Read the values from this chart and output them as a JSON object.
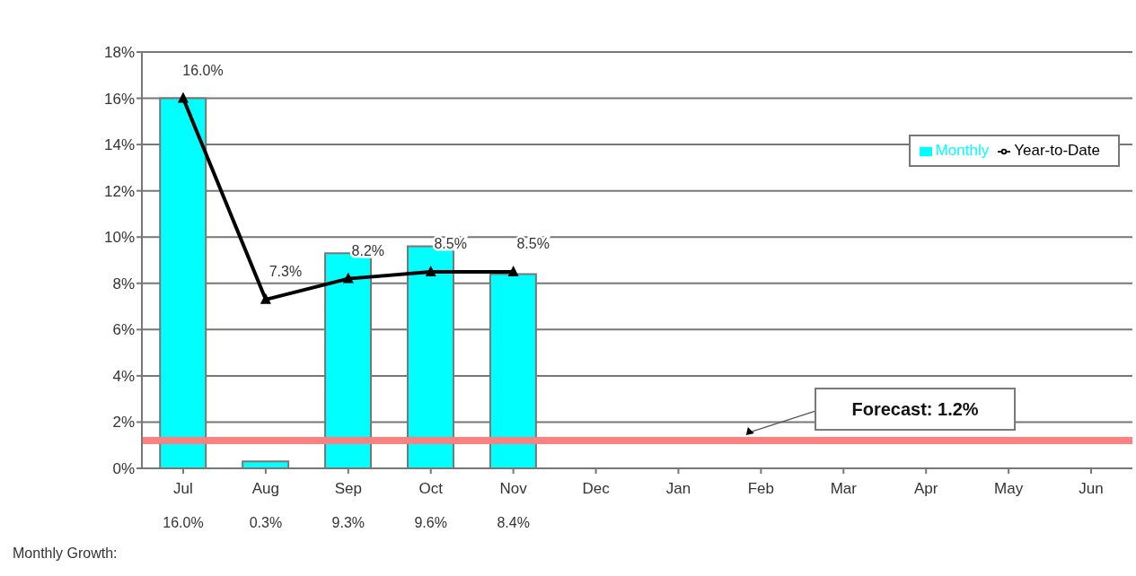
{
  "chart_data": {
    "type": "bar",
    "categories": [
      "Jul",
      "Aug",
      "Sep",
      "Oct",
      "Nov",
      "Dec",
      "Jan",
      "Feb",
      "Mar",
      "Apr",
      "May",
      "Jun"
    ],
    "series": [
      {
        "name": "Monthly",
        "color": "#00ffff",
        "values": [
          16.0,
          0.3,
          9.3,
          9.6,
          8.4,
          null,
          null,
          null,
          null,
          null,
          null,
          null
        ],
        "value_labels": [
          "16.0%",
          "0.3%",
          "9.3%",
          "9.6%",
          "8.4%",
          null,
          null,
          null,
          null,
          null,
          null,
          null
        ]
      },
      {
        "name": "Year-to-Date",
        "type": "line",
        "color": "#000000",
        "marker": "triangle",
        "values": [
          16.0,
          7.3,
          8.2,
          8.5,
          8.5,
          null,
          null,
          null,
          null,
          null,
          null,
          null
        ],
        "value_labels": [
          "16.0%",
          "7.3%",
          "8.2%",
          "8.5%",
          "8.5%",
          null,
          null,
          null,
          null,
          null,
          null,
          null
        ]
      }
    ],
    "ylim": [
      0,
      18
    ],
    "yticks": [
      {
        "value": 0,
        "label": "0%"
      },
      {
        "value": 2,
        "label": "2%"
      },
      {
        "value": 4,
        "label": "4%"
      },
      {
        "value": 6,
        "label": "6%"
      },
      {
        "value": 8,
        "label": "8%"
      },
      {
        "value": 10,
        "label": "10%"
      },
      {
        "value": 12,
        "label": "12%"
      },
      {
        "value": 14,
        "label": "14%"
      },
      {
        "value": 16,
        "label": "16%"
      },
      {
        "value": 18,
        "label": "18%"
      }
    ],
    "ref_lines": [
      {
        "axis": "y",
        "value": 1.2,
        "label": "Forecast: 1.2%",
        "color": "#ff8080"
      }
    ],
    "annotations": [
      "Monthly Growth:"
    ],
    "grid": "y",
    "legend": "top right"
  }
}
